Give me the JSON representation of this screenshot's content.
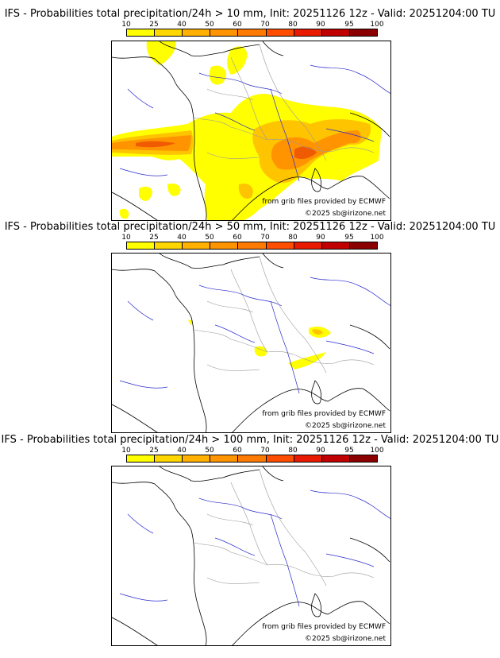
{
  "panels": [
    {
      "title": "IFS - Probabilities total precipitation/24h > 10 mm, Init: 20251126 12z - Valid: 20251204:00 TU",
      "threshold_mm": 10
    },
    {
      "title": "IFS - Probabilities total precipitation/24h > 50 mm, Init: 20251126 12z - Valid: 20251204:00 TU",
      "threshold_mm": 50
    },
    {
      "title": "IFS - Probabilities total precipitation/24h > 100 mm, Init: 20251126 12z - Valid: 20251204:00 TU",
      "threshold_mm": 100
    }
  ],
  "colorbar": {
    "ticks": [
      "10",
      "25",
      "40",
      "50",
      "60",
      "70",
      "80",
      "90",
      "95",
      "100"
    ],
    "colors": [
      "#ffff00",
      "#ffd700",
      "#ffb000",
      "#ff9400",
      "#ff7a00",
      "#ff4e00",
      "#e81a00",
      "#c00000",
      "#8a0000"
    ]
  },
  "credits": {
    "source": "from grib files provided by ECMWF",
    "copyright": "©2025 sb@irizone.net"
  },
  "colors": {
    "coast": "#000000",
    "borders": "#9a9a9a",
    "rivers": "#2a2acc"
  }
}
